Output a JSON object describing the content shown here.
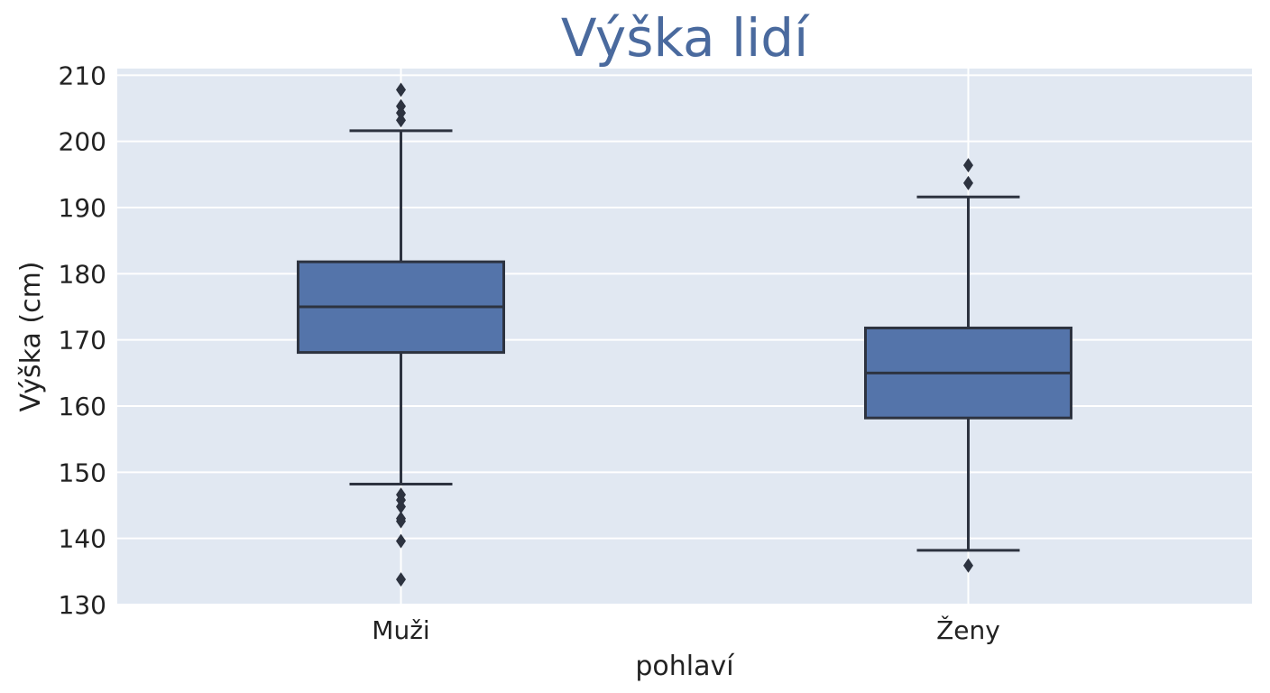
{
  "chart_data": {
    "type": "box",
    "title": "Výška lidí",
    "xlabel": "pohlaví",
    "ylabel": "Výška (cm)",
    "ylim": [
      130,
      211
    ],
    "yticks": [
      130,
      140,
      150,
      160,
      170,
      180,
      190,
      200,
      210
    ],
    "grid": true,
    "categories": [
      "Muži",
      "Ženy"
    ],
    "boxes": [
      {
        "category": "Muži",
        "whisker_low": 148.2,
        "q1": 168.1,
        "median": 175,
        "q3": 181.8,
        "whisker_high": 201.6,
        "outliers": [
          207.8,
          205.3,
          204.3,
          203.2,
          146.6,
          145.8,
          144.8,
          143.0,
          142.6,
          139.6,
          133.8
        ]
      },
      {
        "category": "Ženy",
        "whisker_low": 138.2,
        "q1": 158.2,
        "median": 165,
        "q3": 171.8,
        "whisker_high": 191.6,
        "outliers": [
          196.4,
          193.7,
          135.9
        ]
      }
    ],
    "colors": {
      "box": "#5474aa",
      "line": "#2d3340",
      "background": "#e1e8f2",
      "grid": "#ffffff",
      "title": "#4a6a9e"
    }
  }
}
